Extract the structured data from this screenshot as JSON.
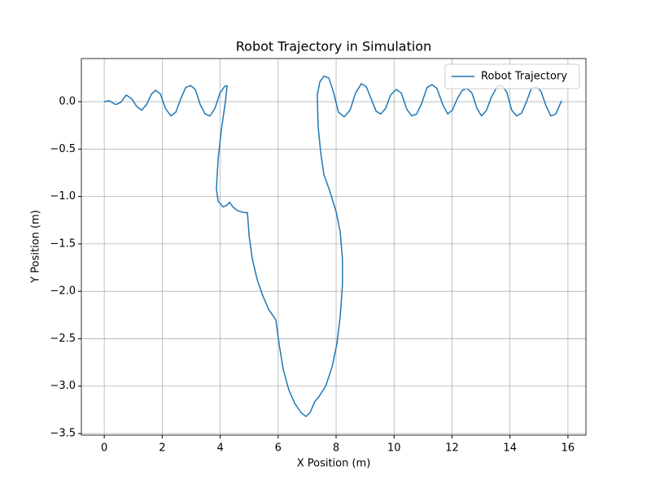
{
  "chart_data": {
    "type": "line",
    "title": "Robot Trajectory in Simulation",
    "x_label": "X Position (m)",
    "y_label": "Y Position (m)",
    "xlim": [
      -0.79,
      16.62
    ],
    "ylim": [
      -3.517,
      0.455
    ],
    "xticks": [
      0,
      2,
      4,
      6,
      8,
      10,
      12,
      14,
      16
    ],
    "yticks": [
      {
        "value": -3.5,
        "label": "−3.5"
      },
      {
        "value": -3.0,
        "label": "−3.0"
      },
      {
        "value": -2.5,
        "label": "−2.5"
      },
      {
        "value": -2.0,
        "label": "−2.0"
      },
      {
        "value": -1.5,
        "label": "−1.5"
      },
      {
        "value": -1.0,
        "label": "−1.0"
      },
      {
        "value": -0.5,
        "label": "−0.5"
      },
      {
        "value": 0,
        "label": "0.0"
      }
    ],
    "grid": true,
    "legend": "upper right",
    "series": [
      {
        "name": "Robot Trajectory",
        "color": "#1f77b4",
        "x": [
          0,
          0.17,
          0.39,
          0.56,
          0.76,
          0.95,
          1.12,
          1.29,
          1.46,
          1.63,
          1.77,
          1.94,
          2.11,
          2.3,
          2.47,
          2.64,
          2.81,
          2.98,
          3.14,
          3.31,
          3.48,
          3.65,
          3.82,
          3.99,
          4.15,
          4.24,
          4.18,
          4.04,
          3.93,
          3.87,
          3.93,
          4.1,
          4.24,
          4.32,
          4.44,
          4.6,
          4.83,
          4.94,
          5.0,
          5.11,
          5.28,
          5.45,
          5.67,
          5.92,
          6.04,
          6.18,
          6.37,
          6.57,
          6.79,
          6.96,
          7.1,
          7.27,
          7.41,
          7.64,
          7.86,
          8.03,
          8.14,
          8.22,
          8.22,
          8.14,
          8.0,
          7.78,
          7.58,
          7.47,
          7.38,
          7.35,
          7.44,
          7.58,
          7.75,
          7.92,
          8.08,
          8.28,
          8.48,
          8.67,
          8.87,
          9.04,
          9.21,
          9.38,
          9.54,
          9.71,
          9.88,
          10.08,
          10.25,
          10.44,
          10.61,
          10.78,
          10.95,
          11.14,
          11.31,
          11.48,
          11.68,
          11.85,
          12.01,
          12.18,
          12.35,
          12.52,
          12.69,
          12.86,
          13.02,
          13.19,
          13.36,
          13.56,
          13.73,
          13.89,
          14.06,
          14.23,
          14.4,
          14.57,
          14.74,
          14.91,
          15.07,
          15.24,
          15.41,
          15.58,
          15.78
        ],
        "values": [
          0,
          0.01,
          -0.03,
          -0.01,
          0.07,
          0.03,
          -0.05,
          -0.09,
          -0.03,
          0.08,
          0.12,
          0.08,
          -0.07,
          -0.15,
          -0.11,
          0.03,
          0.15,
          0.17,
          0.13,
          -0.03,
          -0.13,
          -0.15,
          -0.07,
          0.09,
          0.16,
          0.17,
          0,
          -0.3,
          -0.6,
          -0.92,
          -1.05,
          -1.11,
          -1.09,
          -1.06,
          -1.11,
          -1.15,
          -1.17,
          -1.17,
          -1.42,
          -1.66,
          -1.88,
          -2.03,
          -2.19,
          -2.3,
          -2.57,
          -2.83,
          -3.04,
          -3.18,
          -3.28,
          -3.32,
          -3.28,
          -3.16,
          -3.11,
          -3.0,
          -2.8,
          -2.55,
          -2.27,
          -1.93,
          -1.66,
          -1.37,
          -1.16,
          -0.94,
          -0.77,
          -0.54,
          -0.26,
          0.07,
          0.21,
          0.27,
          0.25,
          0.09,
          -0.11,
          -0.16,
          -0.09,
          0.09,
          0.19,
          0.16,
          0.03,
          -0.1,
          -0.13,
          -0.07,
          0.07,
          0.13,
          0.09,
          -0.08,
          -0.15,
          -0.13,
          -0.02,
          0.15,
          0.18,
          0.14,
          -0.03,
          -0.13,
          -0.09,
          0.03,
          0.12,
          0.14,
          0.09,
          -0.07,
          -0.15,
          -0.09,
          0.05,
          0.16,
          0.17,
          0.1,
          -0.09,
          -0.15,
          -0.12,
          0,
          0.14,
          0.16,
          0.11,
          -0.04,
          -0.15,
          -0.13,
          0.01
        ]
      }
    ]
  }
}
